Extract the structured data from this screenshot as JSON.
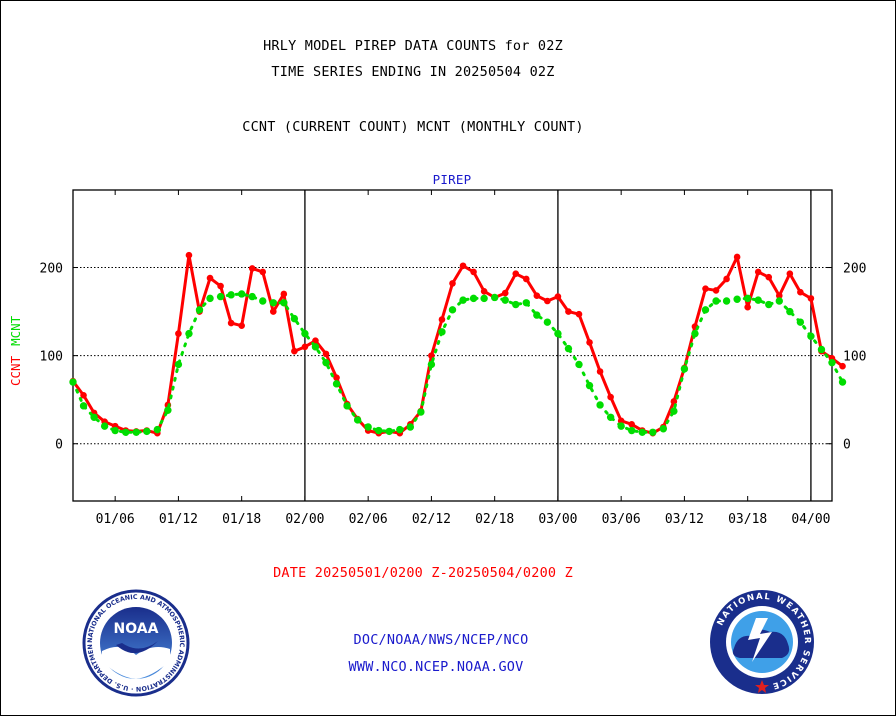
{
  "header": {
    "title_line1": "HRLY MODEL PIREP DATA COUNTS for 02Z",
    "title_line2": "TIME SERIES ENDING IN 20250504 02Z",
    "subtitle": "CCNT (CURRENT COUNT) MCNT (MONTHLY COUNT)",
    "panel_title": "PIREP"
  },
  "footer": {
    "date_range": "DATE 20250501/0200 Z-20250504/0200 Z",
    "agency": "DOC/NOAA/NWS/NCEP/NCO",
    "website": "WWW.NCO.NCEP.NOAA.GOV"
  },
  "logos": {
    "noaa_text": "NOAA",
    "noaa_ring_text": "NATIONAL OCEANIC AND ATMOSPHERIC ADMINISTRATION · U.S. DEPARTMENT OF COMMERCE ·",
    "nws_ring_text": "NATIONAL WEATHER SERVICE"
  },
  "colors": {
    "ccnt": "#ff0000",
    "mcnt": "#00dd00",
    "text_blue": "#1a1acc",
    "axis": "#000000"
  },
  "chart_data": {
    "type": "line",
    "title": "PIREP",
    "ylabel_left": [
      "CCNT",
      "MCNT"
    ],
    "ylim": [
      -65,
      288
    ],
    "xlim": [
      0,
      72
    ],
    "x_unit_note": "",
    "yticks": [
      0,
      100,
      200
    ],
    "ytick_labels": [
      "0",
      "100",
      "200"
    ],
    "xticks": [
      4,
      10,
      16,
      22,
      28,
      34,
      40,
      46,
      52,
      58,
      64,
      70
    ],
    "xtick_labels": [
      "01/06",
      "01/12",
      "01/18",
      "02/00",
      "02/06",
      "02/12",
      "02/18",
      "03/00",
      "03/06",
      "03/12",
      "03/18",
      "04/00"
    ],
    "day_separators": [
      22,
      46,
      70
    ],
    "horizontal_grid": [
      0,
      100,
      200
    ],
    "grid_style": "dotted",
    "series": [
      {
        "name": "CCNT",
        "color": "#ff0000",
        "values": [
          71,
          55,
          35,
          25,
          20,
          15,
          14,
          15,
          12,
          44,
          125,
          214,
          150,
          188,
          179,
          137,
          134,
          199,
          195,
          150,
          170,
          105,
          110,
          117,
          102,
          75,
          45,
          28,
          15,
          12,
          14,
          12,
          22,
          37,
          100,
          141,
          182,
          202,
          195,
          173,
          166,
          171,
          193,
          187,
          168,
          162,
          167,
          150,
          147,
          115,
          82,
          53,
          26,
          22,
          15,
          12,
          19,
          48,
          86,
          133,
          176,
          174,
          187,
          212,
          155,
          195,
          189,
          168,
          193,
          172,
          165,
          105,
          97,
          88
        ]
      },
      {
        "name": "MCNT",
        "color": "#00dd00",
        "values": [
          70,
          43,
          30,
          20,
          15,
          13,
          13,
          14,
          16,
          38,
          90,
          125,
          152,
          165,
          167,
          169,
          170,
          167,
          162,
          160,
          160,
          142,
          125,
          110,
          92,
          68,
          43,
          27,
          19,
          15,
          14,
          16,
          19,
          36,
          90,
          127,
          152,
          163,
          165,
          165,
          166,
          163,
          158,
          160,
          146,
          138,
          125,
          108,
          90,
          66,
          44,
          30,
          20,
          15,
          13,
          13,
          17,
          37,
          85,
          125,
          152,
          162,
          162,
          164,
          165,
          163,
          158,
          162,
          150,
          138,
          122,
          107,
          92,
          70
        ]
      }
    ]
  }
}
